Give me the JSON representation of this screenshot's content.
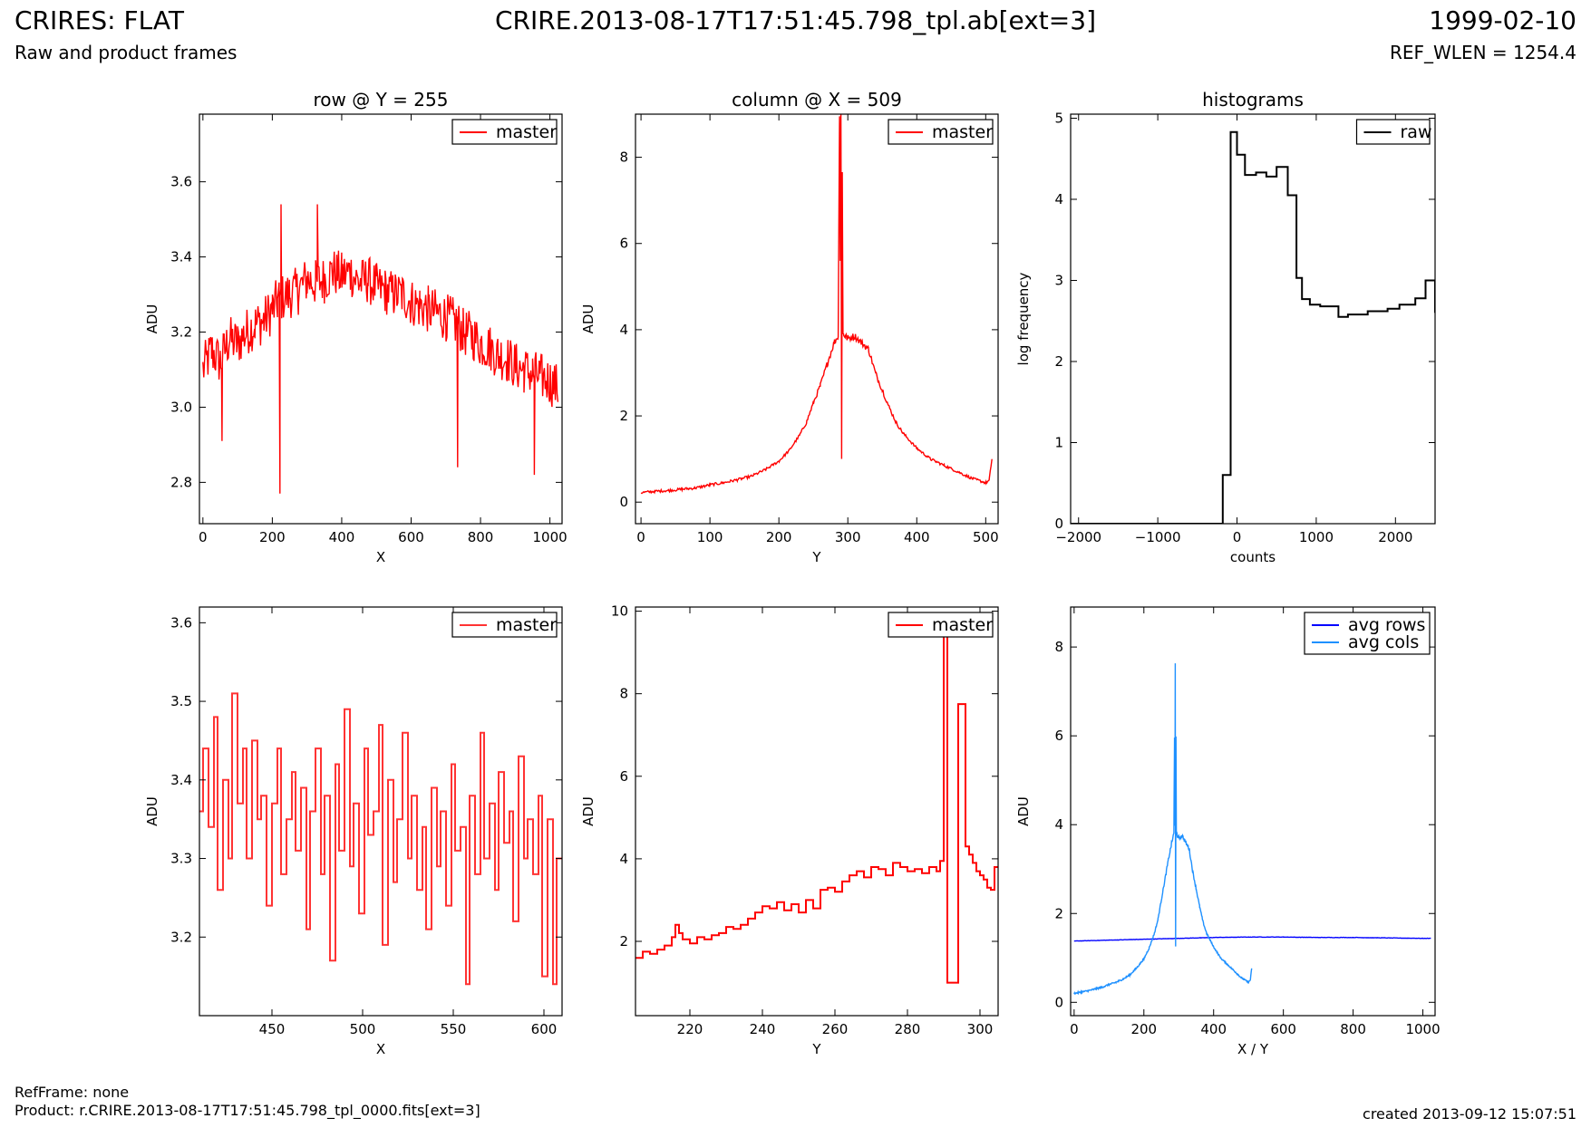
{
  "header": {
    "title": "CRIRES: FLAT",
    "subtitle": "Raw and product frames",
    "file": "CRIRE.2013-08-17T17:51:45.798_tpl.ab[ext=3]",
    "date": "1999-02-10",
    "ref_wlen": "REF_WLEN = 1254.4"
  },
  "footer": {
    "ref_frame": "RefFrame: none",
    "product": "Product: r.CRIRE.2013-08-17T17:51:45.798_tpl_0000.fits[ext=3]",
    "created": "created 2013-09-12 15:07:51"
  },
  "colors": {
    "red": "#ff0000",
    "black": "#000000",
    "blue": "#0000ff",
    "light_blue": "#1e90ff"
  },
  "chart_data": [
    {
      "id": "row",
      "type": "line",
      "title": "row @ Y = 255",
      "xlabel": "X",
      "ylabel": "ADU",
      "xlim": [
        -10,
        1035
      ],
      "ylim": [
        2.69,
        3.78
      ],
      "xticks": [
        0,
        200,
        400,
        600,
        800,
        1000
      ],
      "yticks": [
        2.8,
        3.0,
        3.2,
        3.4,
        3.6
      ],
      "ytick_labels": [
        "2.8",
        "3.0",
        "3.2",
        "3.4",
        "3.6"
      ],
      "legend": "top-right",
      "series": [
        {
          "name": "master",
          "color": "#ff0000",
          "x": [
            0,
            25,
            50,
            75,
            100,
            125,
            150,
            175,
            200,
            215,
            225,
            250,
            275,
            300,
            325,
            350,
            375,
            400,
            425,
            450,
            475,
            500,
            525,
            550,
            575,
            600,
            625,
            650,
            675,
            700,
            720,
            735,
            750,
            775,
            800,
            825,
            850,
            875,
            900,
            925,
            950,
            975,
            1000,
            1023
          ],
          "y": [
            3.1,
            3.15,
            3.12,
            3.18,
            3.17,
            3.2,
            3.22,
            3.23,
            3.26,
            3.28,
            3.29,
            3.3,
            3.31,
            3.34,
            3.33,
            3.34,
            3.36,
            3.35,
            3.36,
            3.33,
            3.34,
            3.32,
            3.31,
            3.3,
            3.3,
            3.28,
            3.27,
            3.26,
            3.25,
            3.24,
            3.23,
            3.22,
            3.2,
            3.19,
            3.17,
            3.16,
            3.14,
            3.13,
            3.11,
            3.1,
            3.09,
            3.08,
            3.07,
            3.05
          ],
          "noise": 0.065,
          "spikes": [
            {
              "x": 222,
              "y": 2.77
            },
            {
              "x": 734,
              "y": 2.84
            },
            {
              "x": 955,
              "y": 2.82
            },
            {
              "x": 55,
              "y": 2.91
            },
            {
              "x": 225,
              "y": 3.54
            },
            {
              "x": 330,
              "y": 3.54
            }
          ]
        }
      ]
    },
    {
      "id": "column",
      "type": "line",
      "title": "column @ X = 509",
      "xlabel": "Y",
      "ylabel": "ADU",
      "xlim": [
        -8,
        518
      ],
      "ylim": [
        -0.5,
        9.0
      ],
      "xticks": [
        0,
        100,
        200,
        300,
        400,
        500
      ],
      "yticks": [
        0,
        2,
        4,
        6,
        8
      ],
      "legend": "top-right",
      "series": [
        {
          "name": "master",
          "color": "#ff0000",
          "x": [
            0,
            20,
            40,
            60,
            80,
            100,
            120,
            140,
            160,
            180,
            200,
            215,
            230,
            240,
            250,
            260,
            270,
            280,
            286,
            288,
            289,
            290,
            291,
            292,
            293,
            294,
            296,
            300,
            310,
            320,
            330,
            340,
            350,
            360,
            370,
            380,
            400,
            420,
            440,
            460,
            480,
            500,
            505,
            509
          ],
          "y": [
            0.22,
            0.25,
            0.27,
            0.3,
            0.33,
            0.4,
            0.45,
            0.52,
            0.6,
            0.75,
            0.95,
            1.2,
            1.55,
            1.85,
            2.3,
            2.7,
            3.2,
            3.7,
            3.85,
            9.0,
            5.6,
            9.0,
            1.0,
            7.7,
            3.9,
            3.9,
            3.85,
            3.8,
            3.85,
            3.7,
            3.55,
            3.0,
            2.6,
            2.2,
            1.85,
            1.6,
            1.25,
            1.0,
            0.85,
            0.7,
            0.55,
            0.45,
            0.5,
            1.0
          ],
          "noise": 0.09,
          "spikes": []
        }
      ]
    },
    {
      "id": "histogram",
      "type": "step",
      "title": "histograms",
      "xlabel": "counts",
      "ylabel": "log frequency",
      "xlim": [
        -2100,
        2500
      ],
      "ylim": [
        0,
        5.05
      ],
      "xticks": [
        -2000,
        -1000,
        0,
        1000,
        2000
      ],
      "xtick_labels": [
        "−2000",
        "−1000",
        "0",
        "1000",
        "2000"
      ],
      "yticks": [
        0,
        1,
        2,
        3,
        4,
        5
      ],
      "legend": "top-right",
      "series": [
        {
          "name": "raw",
          "color": "#000000",
          "x": [
            -2100,
            -180,
            -180,
            -80,
            0,
            100,
            240,
            370,
            500,
            640,
            750,
            820,
            920,
            1050,
            1280,
            1400,
            1650,
            1900,
            2050,
            2250,
            2380,
            2500
          ],
          "y": [
            0,
            0,
            0.6,
            4.83,
            4.55,
            4.3,
            4.33,
            4.28,
            4.4,
            4.05,
            3.03,
            2.77,
            2.7,
            2.68,
            2.55,
            2.58,
            2.62,
            2.65,
            2.7,
            2.78,
            3.0,
            2.6
          ]
        }
      ]
    },
    {
      "id": "row-zoom",
      "type": "step",
      "title": "",
      "xlabel": "X",
      "ylabel": "ADU",
      "xlim": [
        410,
        610
      ],
      "ylim": [
        3.1,
        3.62
      ],
      "xticks": [
        450,
        500,
        550,
        600
      ],
      "yticks": [
        3.2,
        3.3,
        3.4,
        3.5,
        3.6
      ],
      "ytick_labels": [
        "3.2",
        "3.3",
        "3.4",
        "3.5",
        "3.6"
      ],
      "legend": "top-right",
      "series": [
        {
          "name": "master",
          "color": "#ff3333",
          "x": [
            410,
            412,
            415,
            418,
            420,
            423,
            426,
            428,
            431,
            434,
            436,
            439,
            442,
            444,
            447,
            450,
            453,
            455,
            458,
            461,
            463,
            466,
            469,
            471,
            474,
            477,
            479,
            482,
            485,
            487,
            490,
            493,
            495,
            498,
            501,
            503,
            506,
            509,
            511,
            514,
            517,
            519,
            522,
            525,
            527,
            530,
            533,
            535,
            538,
            541,
            543,
            546,
            549,
            551,
            554,
            557,
            559,
            562,
            565,
            567,
            570,
            573,
            575,
            578,
            581,
            583,
            586,
            589,
            591,
            594,
            597,
            599,
            602,
            605,
            607,
            610
          ],
          "y": [
            3.36,
            3.44,
            3.34,
            3.48,
            3.26,
            3.4,
            3.3,
            3.51,
            3.37,
            3.44,
            3.3,
            3.45,
            3.35,
            3.38,
            3.24,
            3.37,
            3.44,
            3.28,
            3.35,
            3.41,
            3.31,
            3.39,
            3.21,
            3.36,
            3.44,
            3.28,
            3.38,
            3.17,
            3.42,
            3.31,
            3.49,
            3.29,
            3.37,
            3.23,
            3.44,
            3.33,
            3.36,
            3.47,
            3.19,
            3.4,
            3.27,
            3.35,
            3.46,
            3.3,
            3.38,
            3.26,
            3.34,
            3.21,
            3.39,
            3.29,
            3.36,
            3.24,
            3.42,
            3.31,
            3.34,
            3.14,
            3.38,
            3.28,
            3.46,
            3.3,
            3.37,
            3.26,
            3.41,
            3.32,
            3.36,
            3.22,
            3.43,
            3.3,
            3.35,
            3.28,
            3.38,
            3.15,
            3.35,
            3.14,
            3.3,
            3.3
          ]
        }
      ]
    },
    {
      "id": "column-zoom",
      "type": "step",
      "title": "",
      "xlabel": "Y",
      "ylabel": "ADU",
      "xlim": [
        205,
        305
      ],
      "ylim": [
        0.2,
        10.1
      ],
      "xticks": [
        220,
        240,
        260,
        280,
        300
      ],
      "yticks": [
        2,
        4,
        6,
        8,
        10
      ],
      "legend": "top-right",
      "series": [
        {
          "name": "master",
          "color": "#ff0000",
          "x": [
            205,
            207,
            209,
            211,
            213,
            215,
            216,
            217,
            218,
            220,
            222,
            224,
            226,
            228,
            230,
            232,
            234,
            236,
            238,
            240,
            242,
            244,
            246,
            248,
            250,
            252,
            254,
            256,
            258,
            260,
            262,
            264,
            266,
            268,
            270,
            272,
            274,
            276,
            278,
            280,
            282,
            284,
            286,
            288,
            289,
            290,
            291,
            292,
            293,
            294,
            295,
            296,
            297,
            298,
            299,
            300,
            301,
            302,
            303,
            304,
            305
          ],
          "y": [
            1.6,
            1.75,
            1.7,
            1.8,
            1.9,
            2.1,
            2.4,
            2.2,
            2.05,
            1.95,
            2.1,
            2.05,
            2.15,
            2.2,
            2.35,
            2.3,
            2.4,
            2.55,
            2.7,
            2.85,
            2.8,
            2.95,
            2.75,
            2.9,
            2.7,
            3.0,
            2.8,
            3.25,
            3.3,
            3.2,
            3.45,
            3.6,
            3.7,
            3.55,
            3.8,
            3.75,
            3.6,
            3.9,
            3.8,
            3.7,
            3.75,
            3.65,
            3.8,
            3.7,
            3.95,
            9.45,
            1.0,
            1.0,
            1.0,
            7.75,
            7.75,
            4.3,
            4.1,
            3.9,
            3.7,
            3.6,
            3.5,
            3.3,
            3.25,
            3.8,
            3.8
          ]
        }
      ]
    },
    {
      "id": "averages",
      "type": "line",
      "title": "",
      "xlabel": "X / Y",
      "ylabel": "ADU",
      "xlim": [
        -10,
        1035
      ],
      "ylim": [
        -0.3,
        8.9
      ],
      "xticks": [
        0,
        200,
        400,
        600,
        800,
        1000
      ],
      "yticks": [
        0,
        2,
        4,
        6,
        8
      ],
      "legend": "top-right",
      "series": [
        {
          "name": "avg rows",
          "color": "#0000ff",
          "x": [
            0,
            100,
            200,
            300,
            400,
            500,
            600,
            700,
            800,
            900,
            1000,
            1023
          ],
          "y": [
            1.38,
            1.4,
            1.42,
            1.44,
            1.46,
            1.47,
            1.47,
            1.46,
            1.46,
            1.45,
            1.44,
            1.44
          ],
          "noise": 0.01,
          "spikes": []
        },
        {
          "name": "avg cols",
          "color": "#1e90ff",
          "x": [
            0,
            20,
            40,
            60,
            80,
            100,
            120,
            140,
            160,
            180,
            200,
            215,
            230,
            240,
            250,
            260,
            270,
            280,
            286,
            288,
            289,
            290,
            291,
            292,
            293,
            294,
            296,
            300,
            310,
            320,
            330,
            340,
            350,
            360,
            370,
            380,
            400,
            420,
            440,
            460,
            480,
            500,
            505,
            509
          ],
          "y": [
            0.2,
            0.23,
            0.26,
            0.3,
            0.34,
            0.4,
            0.45,
            0.52,
            0.62,
            0.78,
            0.98,
            1.22,
            1.55,
            1.85,
            2.3,
            2.75,
            3.2,
            3.6,
            3.8,
            6.0,
            4.0,
            7.6,
            1.25,
            6.0,
            3.85,
            3.8,
            3.75,
            3.7,
            3.75,
            3.6,
            3.45,
            2.95,
            2.55,
            2.15,
            1.8,
            1.55,
            1.25,
            1.0,
            0.85,
            0.7,
            0.55,
            0.45,
            0.5,
            0.75
          ],
          "noise": 0.05,
          "spikes": []
        }
      ]
    }
  ]
}
